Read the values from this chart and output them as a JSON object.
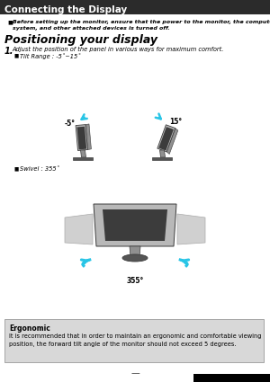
{
  "title": "Connecting the Display",
  "title_bg": "#2b2b2b",
  "title_color": "#ffffff",
  "title_fontsize": 7.5,
  "body_bg": "#ffffff",
  "bullet1_line1": "Before setting up the monitor, ensure that the power to the monitor, the computer",
  "bullet1_line2": "system, and other attached devices is turned off.",
  "section_heading": "Positioning your display",
  "step1_main": "Adjust the position of the panel in various ways for maximum comfort.",
  "bullet_tilt": "Tilt Range : -5˚~15˚",
  "tilt_neg5": "-5°",
  "tilt_15": "15°",
  "bullet_swivel": "Swivel : 355˚",
  "swivel_degrees": "355°",
  "ergonomic_title": "Ergonomic",
  "ergonomic_text": "It is recommended that in order to maintain an ergonomic and comfortable viewing\nposition, the forward tilt angle of the monitor should not exceed 5 degrees.",
  "ergonomic_bg": "#d8d8d8",
  "page_indicator": "—",
  "accent_color": "#29c5e6",
  "monitor_dark": "#3c3c3c",
  "monitor_body": "#b8b8b8",
  "monitor_bezel": "#a0a0a0",
  "monitor_stand": "#909090",
  "monitor_base": "#555555"
}
